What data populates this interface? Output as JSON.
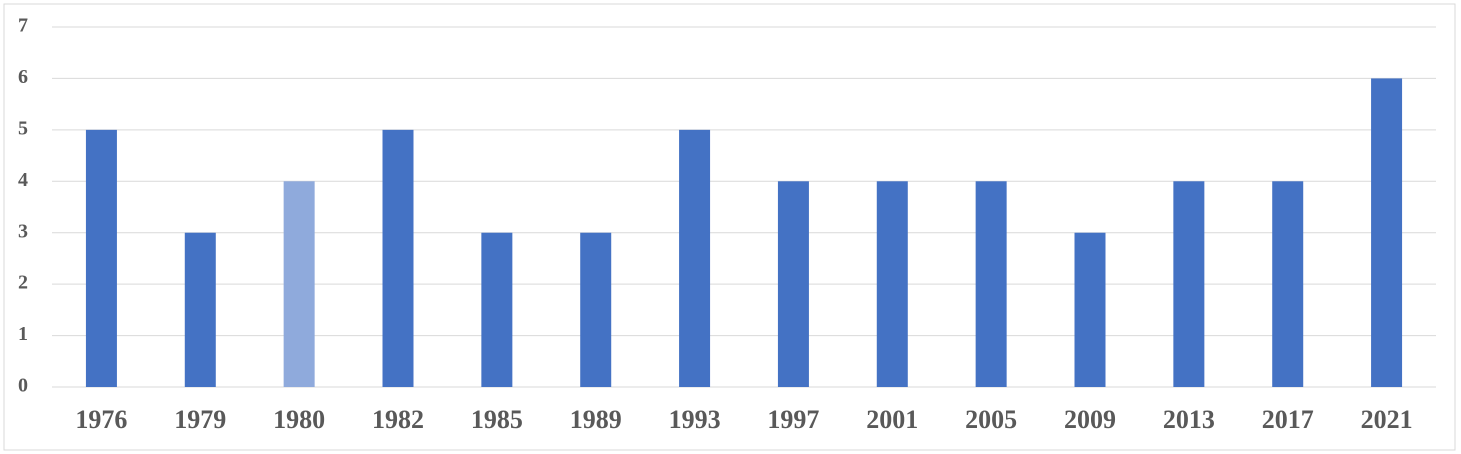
{
  "chart_data": {
    "type": "bar",
    "categories": [
      "1976",
      "1979",
      "1980",
      "1982",
      "1985",
      "1989",
      "1993",
      "1997",
      "2001",
      "2005",
      "2009",
      "2013",
      "2017",
      "2021"
    ],
    "values": [
      5,
      3,
      4,
      5,
      3,
      3,
      5,
      4,
      4,
      4,
      3,
      4,
      4,
      6
    ],
    "colors": [
      "#4472c4",
      "#4472c4",
      "#8faadc",
      "#4472c4",
      "#4472c4",
      "#4472c4",
      "#4472c4",
      "#4472c4",
      "#4472c4",
      "#4472c4",
      "#4472c4",
      "#4472c4",
      "#4472c4",
      "#4472c4"
    ],
    "ylim": [
      0,
      7
    ],
    "yticks": [
      0,
      1,
      2,
      3,
      4,
      5,
      6,
      7
    ],
    "grid": true
  }
}
